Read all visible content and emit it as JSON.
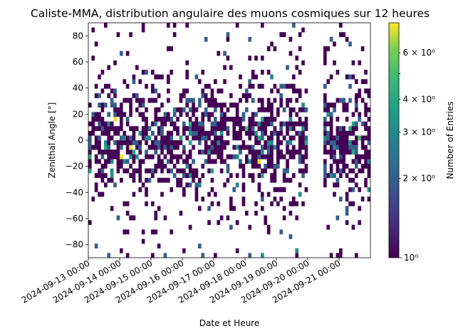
{
  "chart_data": {
    "type": "heatmap",
    "title": "Caliste-MMA, distribution angulaire des muons cosmiques sur 12 heures",
    "xlabel": "Date et Heure",
    "ylabel": "Zenithal Angle [°]",
    "x_tick_labels": [
      "2024-09-13 00:00",
      "2024-09-14 00:00",
      "2024-09-15 00:00",
      "2024-09-16 00:00",
      "2024-09-17 00:00",
      "2024-09-18 00:00",
      "2024-09-19 00:00",
      "2024-09-20 00:00",
      "2024-09-21 00:00"
    ],
    "y_ticks": [
      -80,
      -60,
      -40,
      -20,
      0,
      20,
      40,
      60,
      80
    ],
    "ylim": [
      -90,
      90
    ],
    "xlim_days": [
      0,
      9
    ],
    "gap_days": [
      7.0,
      7.45
    ],
    "colorbar": {
      "label": "Number of Entries",
      "scale": "log",
      "range": [
        1,
        7.8
      ],
      "major_ticks": [
        {
          "value": 1,
          "label": "10^0"
        }
      ],
      "minor_ticks": [
        {
          "value": 2,
          "label": "2 × 10^0"
        },
        {
          "value": 3,
          "label": "3 × 10^0"
        },
        {
          "value": 4,
          "label": "4 × 10^0"
        },
        {
          "value": 6,
          "label": "6 × 10^0"
        }
      ],
      "colormap": "viridis"
    },
    "binning": {
      "time_bins": 90,
      "angle_bins": 50
    },
    "distribution": "Entries concentrated between about -40° and +40°, peaking near 0°, sparse above |60°|; no entries between 2024-09-20 00:00 and about 2024-09-20 11:00; maximum about 7.8 entries per bin."
  }
}
